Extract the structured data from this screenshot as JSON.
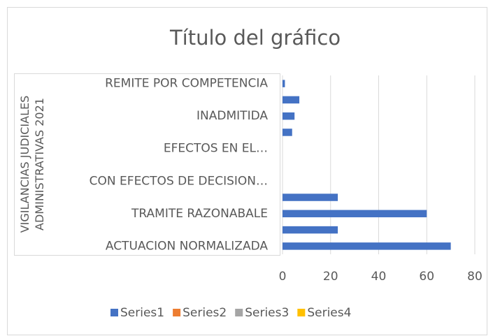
{
  "chart_data": {
    "type": "hbar",
    "title": "Título del gráfico",
    "y_label": "VIGILANCIAS JUDICIALES ADMINISTRATIVAS 2021",
    "categories": [
      "ACTUACION NORMALIZADA",
      null,
      "TRAMITE RAZONABALE",
      null,
      "CON EFECTOS DE DECISION…",
      null,
      "EFECTOS EN EL…",
      null,
      "INADMITIDA",
      null,
      "REMITE POR COMPETENCIA"
    ],
    "series": [
      {
        "name": "Series1",
        "color": "#4472c4",
        "values": [
          70,
          23,
          60,
          23,
          0,
          0,
          0,
          4,
          5,
          7,
          1
        ]
      },
      {
        "name": "Series2",
        "color": "#ed7d31",
        "values": [
          null,
          null,
          null,
          null,
          null,
          null,
          null,
          null,
          null,
          null,
          null
        ]
      },
      {
        "name": "Series3",
        "color": "#a5a5a5",
        "values": [
          null,
          null,
          null,
          null,
          null,
          null,
          null,
          null,
          null,
          null,
          null
        ]
      },
      {
        "name": "Series4",
        "color": "#ffc000",
        "values": [
          null,
          null,
          null,
          null,
          null,
          null,
          null,
          null,
          null,
          null,
          null
        ]
      }
    ],
    "xlim": [
      0,
      80
    ],
    "xticks": [
      0,
      20,
      40,
      60,
      80
    ],
    "grid": true,
    "legend": "bottom"
  }
}
